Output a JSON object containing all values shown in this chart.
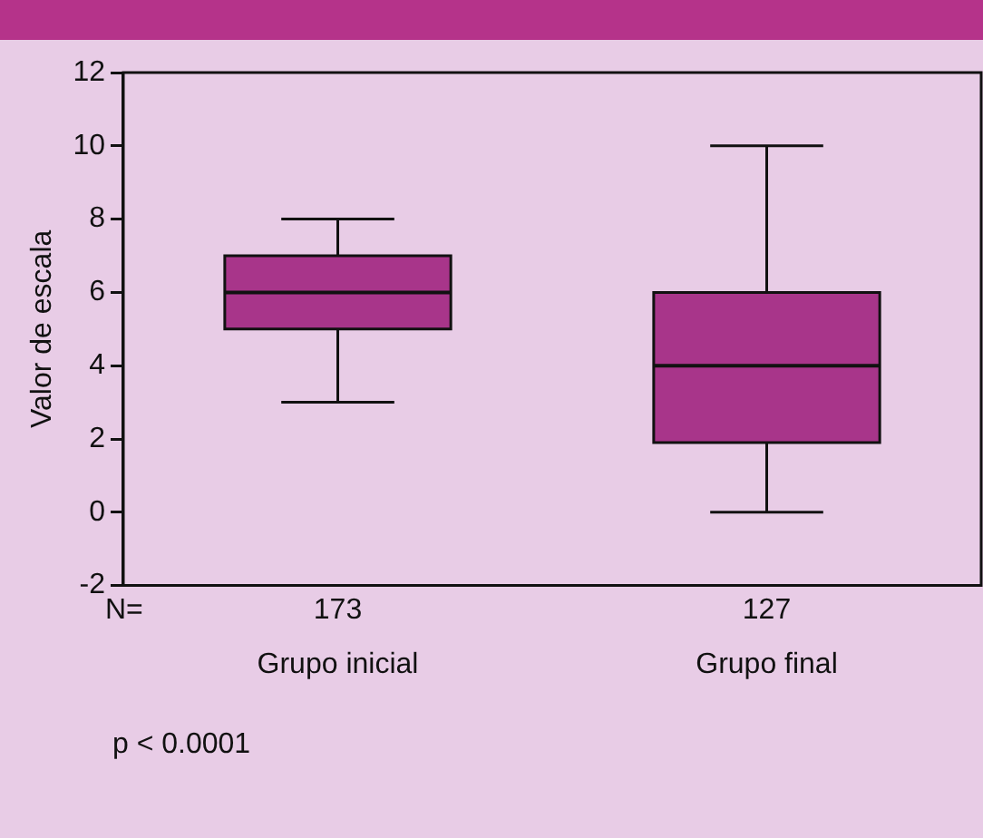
{
  "chart_data": {
    "type": "box",
    "ylabel": "Valor de escala",
    "categories": [
      "Grupo inicial",
      "Grupo final"
    ],
    "color": "#a8358a",
    "boxes": [
      {
        "low": 3,
        "q1": 5,
        "median": 6,
        "q3": 7,
        "high": 8
      },
      {
        "low": 0,
        "q1": 1.9,
        "median": 4,
        "q3": 6,
        "high": 10
      }
    ],
    "ylim": [
      -2,
      12
    ],
    "yticks": [
      -2,
      0,
      2,
      4,
      6,
      8,
      10,
      12
    ],
    "grid": false,
    "legend": false,
    "annotations": [
      "N=",
      "173",
      "127",
      "p < 0.0001"
    ]
  }
}
